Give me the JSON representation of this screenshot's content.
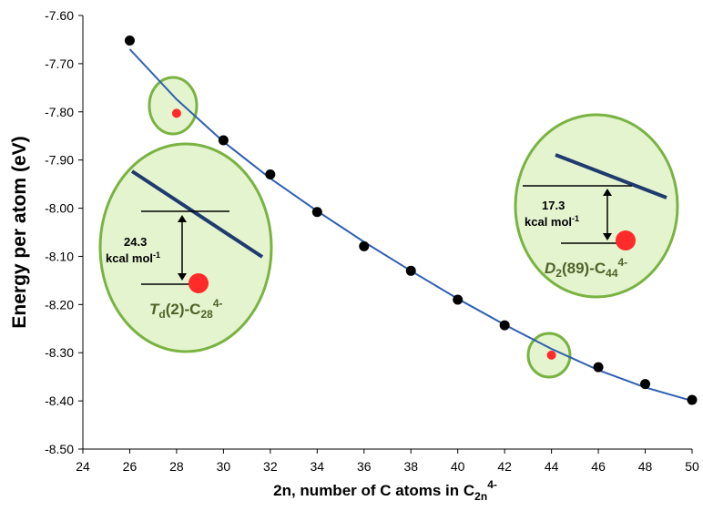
{
  "chart_data": {
    "type": "scatter",
    "xlabel": "2n, number of C atoms in C",
    "xlabel_sub": "2n",
    "xlabel_sup": "4-",
    "ylabel": "Energy per atom (eV)",
    "xlim": [
      24,
      50
    ],
    "ylim": [
      -8.5,
      -7.6
    ],
    "x_ticks": [
      24,
      26,
      28,
      30,
      32,
      34,
      36,
      38,
      40,
      42,
      44,
      46,
      48,
      50
    ],
    "y_ticks": [
      -7.6,
      -7.7,
      -7.8,
      -7.9,
      -8.0,
      -8.1,
      -8.2,
      -8.3,
      -8.4,
      -8.5
    ],
    "y_tick_labels": [
      "-7.60",
      "-7.70",
      "-7.80",
      "-7.90",
      "-8.00",
      "-8.10",
      "-8.20",
      "-8.30",
      "-8.40",
      "-8.50"
    ],
    "grid": false,
    "colors": {
      "main": "#000000",
      "special": "#ff2a2a",
      "fit": "#2e5fb0",
      "bubble_fill": "#e4f4cf",
      "bubble_stroke": "#79b341",
      "label": "#4f6228"
    },
    "series": [
      {
        "points": [
          {
            "x": 26,
            "y": -7.652
          },
          {
            "x": 30,
            "y": -7.859
          },
          {
            "x": 32,
            "y": -7.93
          },
          {
            "x": 34,
            "y": -8.008
          },
          {
            "x": 36,
            "y": -8.079
          },
          {
            "x": 38,
            "y": -8.13
          },
          {
            "x": 40,
            "y": -8.19
          },
          {
            "x": 42,
            "y": -8.243
          },
          {
            "x": 46,
            "y": -8.33
          },
          {
            "x": 48,
            "y": -8.365
          },
          {
            "x": 50,
            "y": -8.398
          }
        ]
      },
      {
        "points": [
          {
            "x": 28,
            "y": -7.803
          },
          {
            "x": 44,
            "y": -8.305
          }
        ]
      }
    ],
    "fit_curve": [
      {
        "x": 26,
        "y": -7.67
      },
      {
        "x": 28,
        "y": -7.774
      },
      {
        "x": 30,
        "y": -7.862
      },
      {
        "x": 32,
        "y": -7.938
      },
      {
        "x": 34,
        "y": -8.006
      },
      {
        "x": 36,
        "y": -8.07
      },
      {
        "x": 38,
        "y": -8.13
      },
      {
        "x": 40,
        "y": -8.188
      },
      {
        "x": 42,
        "y": -8.242
      },
      {
        "x": 44,
        "y": -8.292
      },
      {
        "x": 46,
        "y": -8.336
      },
      {
        "x": 48,
        "y": -8.372
      },
      {
        "x": 50,
        "y": -8.4
      }
    ],
    "annotations": [
      {
        "value": "24.3",
        "unit": "kcal mol",
        "unit_sup": "-1",
        "species_italic": "T",
        "species_sub": "d",
        "species_rest": "(2)-C",
        "species_num": "28",
        "species_charge": "4-"
      },
      {
        "value": "17.3",
        "unit": "kcal mol",
        "unit_sup": "-1",
        "species_italic": "D",
        "species_sub": "2",
        "species_rest": "(89)-C",
        "species_num": "44",
        "species_charge": "4-"
      }
    ]
  }
}
